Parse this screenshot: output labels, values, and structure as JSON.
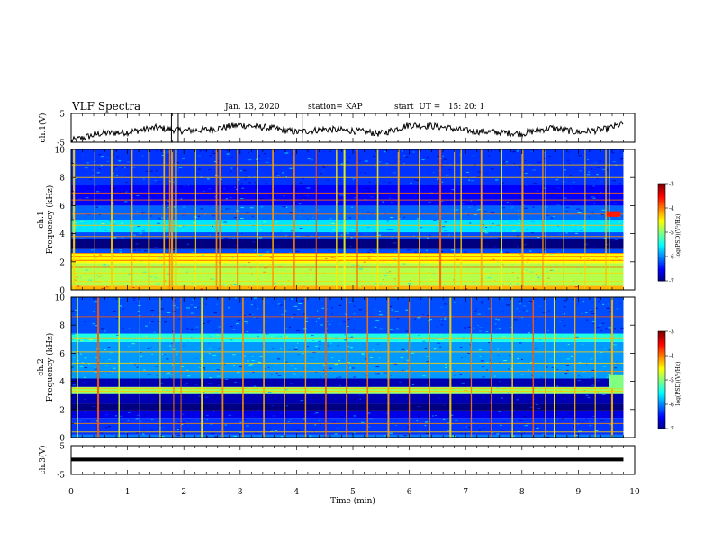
{
  "header": {
    "title": "VLF Spectra",
    "date": "Jan. 13, 2020",
    "station": "station= KAP",
    "start": "start  UT =   15: 20: 1"
  },
  "chart_data": [
    {
      "type": "line",
      "panel": "ch1-voltage",
      "ylabel": "ch.1(V)",
      "ylim": [
        -5,
        5
      ],
      "yticks": [
        "5",
        "-5"
      ],
      "xlim": [
        0,
        10
      ],
      "trend": {
        "x": [
          0,
          0.5,
          1,
          1.5,
          2,
          2.5,
          3,
          3.5,
          4,
          4.5,
          5,
          5.5,
          6,
          6.5,
          7,
          7.5,
          8,
          8.5,
          9,
          9.5,
          9.8
        ],
        "y": [
          -4.5,
          -2,
          -1.5,
          0,
          -1,
          -0.5,
          1,
          0,
          -1.5,
          -0.5,
          -1,
          -2,
          1,
          0.5,
          -1,
          -1.5,
          -2,
          0,
          -1.5,
          -0.5,
          1.5
        ]
      },
      "noise_amplitude": 1.2
    },
    {
      "type": "heatmap",
      "panel": "ch1-spectrogram",
      "ylabel": "ch.1\nFrequency (kHz)",
      "ylim": [
        0,
        10
      ],
      "yticks": [
        "0",
        "2",
        "4",
        "6",
        "8",
        "10"
      ],
      "xlim": [
        0,
        9.8
      ],
      "colorbar": {
        "label": "log(PSD)(V²/Hz)",
        "range": [
          -7,
          -3
        ],
        "ticks": [
          "-3",
          "-4",
          "-5",
          "-6",
          "-7"
        ]
      },
      "bands": [
        {
          "f": [
            0,
            0.3
          ],
          "level": -4.2
        },
        {
          "f": [
            0.3,
            1.9
          ],
          "level": -4.8
        },
        {
          "f": [
            1.9,
            2.6
          ],
          "level": -4.5
        },
        {
          "f": [
            2.6,
            2.9
          ],
          "level": -6.2
        },
        {
          "f": [
            2.9,
            3.6
          ],
          "level": -7.0
        },
        {
          "f": [
            3.6,
            4.1
          ],
          "level": -6.2
        },
        {
          "f": [
            4.1,
            5.0
          ],
          "level": -5.6
        },
        {
          "f": [
            5.0,
            6.0
          ],
          "level": -6.1
        },
        {
          "f": [
            6.0,
            7.5
          ],
          "level": -6.5
        },
        {
          "f": [
            7.5,
            10
          ],
          "level": -6.3
        }
      ],
      "tones_khz": [
        0.6,
        1.2,
        1.6,
        2.1,
        2.4,
        2.6,
        3.8,
        4.6,
        5.4,
        6.4,
        6.9,
        8.0,
        8.9
      ],
      "spikes_min": [
        0.05,
        0.42,
        0.72,
        1.08,
        1.38,
        1.65,
        1.75,
        1.79,
        1.86,
        2.21,
        2.58,
        2.64,
        2.95,
        3.31,
        3.58,
        3.96,
        4.35,
        4.71,
        4.85,
        5.08,
        5.44,
        5.81,
        6.18,
        6.55,
        6.8,
        6.92,
        7.28,
        7.64,
        8.01,
        8.37,
        8.42,
        8.74,
        9.12,
        9.49,
        9.55
      ],
      "patch": {
        "t": [
          9.5,
          9.75
        ],
        "f": [
          5.2,
          5.6
        ],
        "level": -3.6
      }
    },
    {
      "type": "heatmap",
      "panel": "ch2-spectrogram",
      "ylabel": "ch.2\nFrequency (kHz)",
      "ylim": [
        0,
        10
      ],
      "yticks": [
        "0",
        "2",
        "4",
        "6",
        "8",
        "10"
      ],
      "xlim": [
        0,
        9.8
      ],
      "colorbar": {
        "label": "log(PSD)(V²/Hz)",
        "range": [
          -7,
          -3
        ],
        "ticks": [
          "-3",
          "-4",
          "-5",
          "-6",
          "-7"
        ]
      },
      "bands": [
        {
          "f": [
            0,
            0.2
          ],
          "level": -6.0
        },
        {
          "f": [
            0.2,
            1.4
          ],
          "level": -6.3
        },
        {
          "f": [
            1.4,
            1.9
          ],
          "level": -6.6
        },
        {
          "f": [
            1.9,
            2.4
          ],
          "level": -7.0
        },
        {
          "f": [
            2.4,
            3.1
          ],
          "level": -6.8
        },
        {
          "f": [
            3.1,
            3.6
          ],
          "level": -4.9
        },
        {
          "f": [
            3.6,
            4.2
          ],
          "level": -6.8
        },
        {
          "f": [
            4.2,
            6.8
          ],
          "level": -5.9
        },
        {
          "f": [
            6.8,
            7.4
          ],
          "level": -5.4
        },
        {
          "f": [
            7.4,
            10
          ],
          "level": -6.2
        }
      ],
      "tones_khz": [
        0.4,
        1.0,
        1.9,
        3.3,
        3.5,
        4.7,
        5.3,
        6.1,
        7.1,
        8.6
      ],
      "spikes_min": [
        0.11,
        0.48,
        0.85,
        1.22,
        1.58,
        1.82,
        1.95,
        2.32,
        2.69,
        3.05,
        3.42,
        3.79,
        4.16,
        4.52,
        4.89,
        5.26,
        5.63,
        6.0,
        6.36,
        6.73,
        7.1,
        7.46,
        7.83,
        8.2,
        8.42,
        8.57,
        8.94,
        9.3,
        9.6
      ],
      "patch": {
        "t": [
          9.55,
          9.8
        ],
        "f": [
          3.5,
          4.5
        ],
        "level": -5.0
      }
    },
    {
      "type": "line",
      "panel": "ch3-voltage",
      "ylabel": "ch.3(V)",
      "ylim": [
        -5,
        5
      ],
      "yticks": [
        "5",
        "-5"
      ],
      "x": [
        0,
        9.8
      ],
      "y": [
        0.2,
        0.2
      ]
    }
  ],
  "xaxis": {
    "label": "Time (min)",
    "ticks": [
      "0",
      "1",
      "2",
      "3",
      "4",
      "5",
      "6",
      "7",
      "8",
      "9",
      "10"
    ],
    "xlim": [
      0,
      10
    ]
  }
}
